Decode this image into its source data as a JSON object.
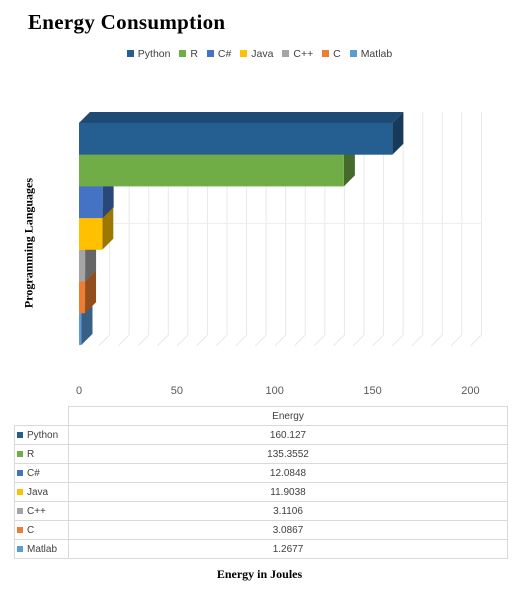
{
  "chart_data": {
    "type": "bar",
    "orientation": "horizontal",
    "style": "3d-clustered",
    "title": "Energy Consumption",
    "xlabel": "Energy  in Joules",
    "ylabel": "Programming  Languages",
    "xlim": [
      0,
      200
    ],
    "xticks": [
      "0",
      "50",
      "100",
      "150",
      "200"
    ],
    "grid": true,
    "legend_position": "top",
    "series": [
      {
        "name": "Python",
        "value": 160.127,
        "label": "160.127",
        "color": "#255E91"
      },
      {
        "name": "R",
        "value": 135.3552,
        "label": "135.3552",
        "color": "#70AD47"
      },
      {
        "name": "C#",
        "value": 12.0848,
        "label": "12.0848",
        "color": "#4472C4"
      },
      {
        "name": "Java",
        "value": 11.9038,
        "label": "11.9038",
        "color": "#FFC000"
      },
      {
        "name": "C++",
        "value": 3.1106,
        "label": "3.1106",
        "color": "#A5A5A5"
      },
      {
        "name": "C",
        "value": 3.0867,
        "label": "3.0867",
        "color": "#ED7D31"
      },
      {
        "name": "Matlab",
        "value": 1.2677,
        "label": "1.2677",
        "color": "#5B9BD5"
      }
    ],
    "table_header": "Energy"
  }
}
